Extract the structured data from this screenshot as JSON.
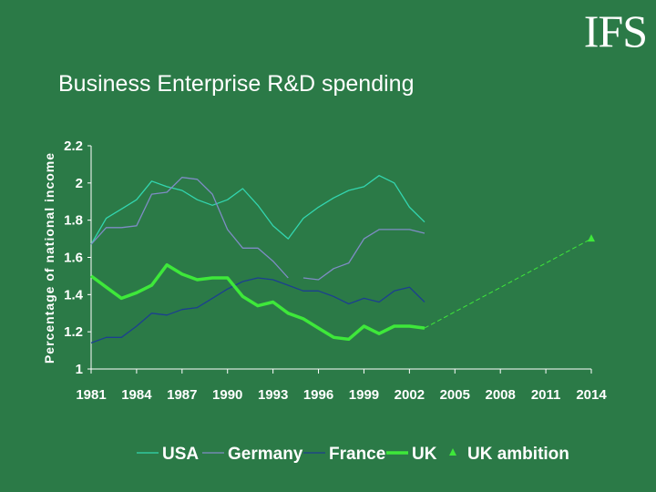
{
  "logo": "IFS",
  "chart_data": {
    "type": "line",
    "title": "Business Enterprise R&D spending",
    "xlabel": "",
    "ylabel": "Percentage of national income",
    "xlim": [
      1981,
      2014
    ],
    "ylim": [
      1,
      2.2
    ],
    "x_ticks": [
      "1981",
      "1984",
      "1987",
      "1990",
      "1993",
      "1996",
      "1999",
      "2002",
      "2005",
      "2008",
      "2011",
      "2014"
    ],
    "y_ticks": [
      "1",
      "1.2",
      "1.4",
      "1.6",
      "1.8",
      "2",
      "2.2"
    ],
    "series": [
      {
        "name": "USA",
        "color": "#33d6b0",
        "style": "solid-thin",
        "x": [
          1981,
          1982,
          1983,
          1984,
          1985,
          1986,
          1987,
          1988,
          1989,
          1990,
          1991,
          1992,
          1993,
          1994,
          1995,
          1996,
          1997,
          1998,
          1999,
          2000,
          2001,
          2002,
          2003
        ],
        "y": [
          1.67,
          1.81,
          1.86,
          1.91,
          2.01,
          1.98,
          1.96,
          1.91,
          1.88,
          1.91,
          1.97,
          1.88,
          1.77,
          1.7,
          1.81,
          1.87,
          1.92,
          1.96,
          1.98,
          2.04,
          2.0,
          1.87,
          1.79
        ]
      },
      {
        "name": "Germany",
        "color": "#7f8cc5",
        "style": "solid-thin",
        "x": [
          1981,
          1982,
          1983,
          1984,
          1985,
          1986,
          1987,
          1988,
          1989,
          1990,
          1991,
          1992,
          1993,
          1994,
          null,
          1995,
          1996,
          1997,
          1998,
          1999,
          2000,
          2001,
          2002,
          2003
        ],
        "y": [
          1.67,
          1.76,
          1.76,
          1.77,
          1.94,
          1.95,
          2.03,
          2.02,
          1.94,
          1.75,
          1.65,
          1.65,
          1.58,
          1.49,
          null,
          1.49,
          1.48,
          1.54,
          1.57,
          1.7,
          1.75,
          1.75,
          1.75,
          1.73
        ]
      },
      {
        "name": "France",
        "color": "#1c3f90",
        "style": "solid-thin",
        "x": [
          1981,
          1982,
          1983,
          1984,
          1985,
          1986,
          1987,
          1988,
          1989,
          1990,
          1991,
          1992,
          1993,
          1994,
          1995,
          1996,
          1997,
          1998,
          1999,
          2000,
          2001,
          2002,
          2003
        ],
        "y": [
          1.14,
          1.17,
          1.17,
          1.23,
          1.3,
          1.29,
          1.32,
          1.33,
          1.38,
          1.43,
          1.47,
          1.49,
          1.48,
          1.45,
          1.42,
          1.42,
          1.39,
          1.35,
          1.38,
          1.36,
          1.42,
          1.44,
          1.36
        ]
      },
      {
        "name": "UK",
        "color": "#3ee83a",
        "style": "solid-thick",
        "x": [
          1981,
          1982,
          1983,
          1984,
          1985,
          1986,
          1987,
          1988,
          1989,
          1990,
          1991,
          1992,
          1993,
          1994,
          1995,
          1996,
          1997,
          1998,
          1999,
          2000,
          2001,
          2002,
          2003
        ],
        "y": [
          1.5,
          1.44,
          1.38,
          1.41,
          1.45,
          1.56,
          1.51,
          1.48,
          1.49,
          1.49,
          1.39,
          1.34,
          1.36,
          1.3,
          1.27,
          1.22,
          1.17,
          1.16,
          1.23,
          1.19,
          1.23,
          1.23,
          1.22
        ]
      },
      {
        "name": "UK ambition",
        "color": "#3ee83a",
        "style": "dashed-marker",
        "x": [
          2003,
          2014
        ],
        "y": [
          1.22,
          1.7
        ]
      }
    ],
    "legend_position": "bottom",
    "grid": false
  }
}
